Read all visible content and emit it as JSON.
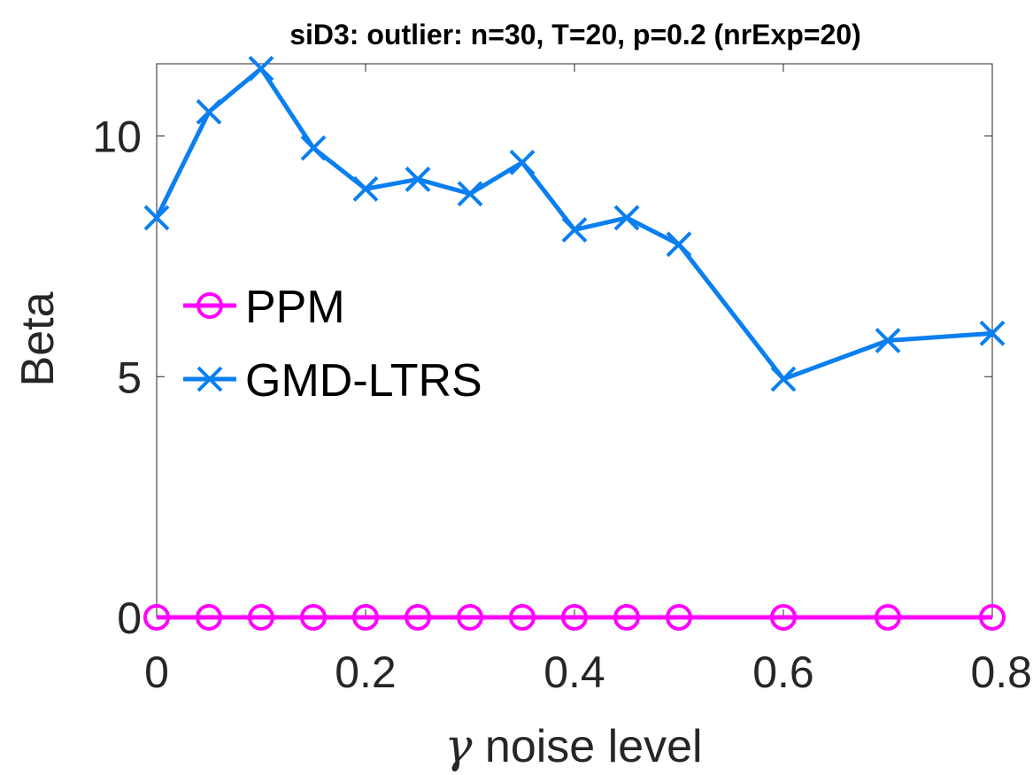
{
  "chart_data": {
    "type": "line",
    "title": "siD3: outlier: n=30, T=20, p=0.2 (nrExp=20)",
    "xlabel_symbol": "γ",
    "xlabel": "noise level",
    "ylabel": "Beta",
    "xlim": [
      0,
      0.8
    ],
    "ylim": [
      0,
      11.5
    ],
    "xticks": [
      0,
      0.2,
      0.4,
      0.6,
      0.8
    ],
    "xtick_labels": [
      "0",
      "0.2",
      "0.4",
      "0.6",
      "0.8"
    ],
    "yticks": [
      0,
      5,
      10
    ],
    "ytick_labels": [
      "0",
      "5",
      "10"
    ],
    "x": [
      0,
      0.05,
      0.1,
      0.15,
      0.2,
      0.25,
      0.3,
      0.35,
      0.4,
      0.45,
      0.5,
      0.6,
      0.7,
      0.8
    ],
    "series": [
      {
        "name": "PPM",
        "color": "#FF00FF",
        "marker": "circle",
        "values": [
          0,
          0,
          0,
          0,
          0,
          0,
          0,
          0,
          0,
          0,
          0,
          0,
          0,
          0
        ]
      },
      {
        "name": "GMD-LTRS",
        "color": "#0A7FF0",
        "marker": "x",
        "values": [
          8.3,
          10.5,
          11.4,
          9.75,
          8.9,
          9.1,
          8.8,
          9.45,
          8.05,
          8.3,
          7.75,
          4.95,
          5.75,
          5.9
        ]
      }
    ],
    "legend": {
      "position": "center-left",
      "box": false
    },
    "grid": false
  }
}
